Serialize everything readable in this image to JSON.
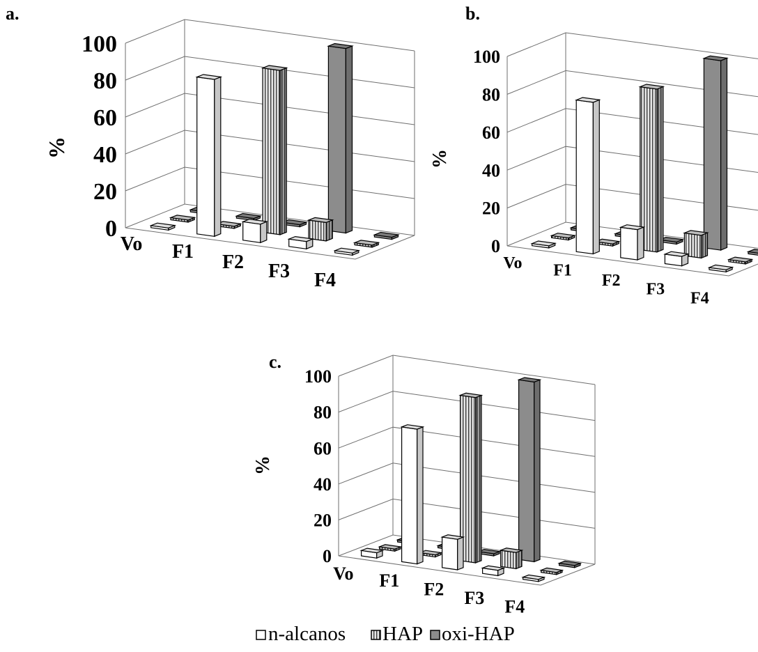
{
  "legend": {
    "items": [
      {
        "label": "n-alcanos",
        "fill": "white"
      },
      {
        "label": "HAP",
        "fill": "stripes"
      },
      {
        "label": "oxi-HAP",
        "fill": "gray"
      }
    ]
  },
  "colors": {
    "n_alcanos_face": "#ffffff",
    "hap_face": "#d9d9d9",
    "oxi_hap_face": "#8c8c8c",
    "outline": "#000000",
    "wall_line": "#6e6e6e"
  },
  "chart_data": [
    {
      "panel": "a.",
      "type": "bar",
      "subtype": "3d-grouped-depth",
      "ylabel": "%",
      "ylim": [
        0,
        100
      ],
      "yticks": [
        "0",
        "20",
        "40",
        "60",
        "80",
        "100"
      ],
      "categories": [
        "Vo",
        "F1",
        "F2",
        "F3",
        "F4"
      ],
      "series": [
        {
          "name": "n-alcanos",
          "values": [
            0,
            85,
            10,
            4,
            0
          ]
        },
        {
          "name": "HAP",
          "values": [
            0,
            0,
            89,
            10,
            1
          ]
        },
        {
          "name": "oxi-HAP",
          "values": [
            0,
            0,
            0,
            100,
            0
          ]
        }
      ]
    },
    {
      "panel": "b.",
      "type": "bar",
      "subtype": "3d-grouped-depth",
      "ylabel": "%",
      "ylim": [
        0,
        100
      ],
      "yticks": [
        "0",
        "20",
        "40",
        "60",
        "80",
        "100"
      ],
      "categories": [
        "Vo",
        "F1",
        "F2",
        "F3",
        "F4"
      ],
      "series": [
        {
          "name": "n-alcanos",
          "values": [
            0,
            80,
            16,
            5,
            0
          ]
        },
        {
          "name": "HAP",
          "values": [
            0,
            0,
            86,
            12,
            1
          ]
        },
        {
          "name": "oxi-HAP",
          "values": [
            0,
            0,
            0,
            100,
            0
          ]
        }
      ]
    },
    {
      "panel": "c.",
      "type": "bar",
      "subtype": "3d-grouped-depth",
      "ylabel": "%",
      "ylim": [
        0,
        100
      ],
      "yticks": [
        "0",
        "20",
        "40",
        "60",
        "80",
        "100"
      ],
      "categories": [
        "Vo",
        "F1",
        "F2",
        "F3",
        "F4"
      ],
      "series": [
        {
          "name": "n-alcanos",
          "values": [
            3,
            75,
            17,
            3,
            0
          ]
        },
        {
          "name": "HAP",
          "values": [
            0,
            0,
            92,
            9,
            1
          ]
        },
        {
          "name": "oxi-HAP",
          "values": [
            0,
            0,
            0,
            100,
            0
          ]
        }
      ]
    }
  ]
}
